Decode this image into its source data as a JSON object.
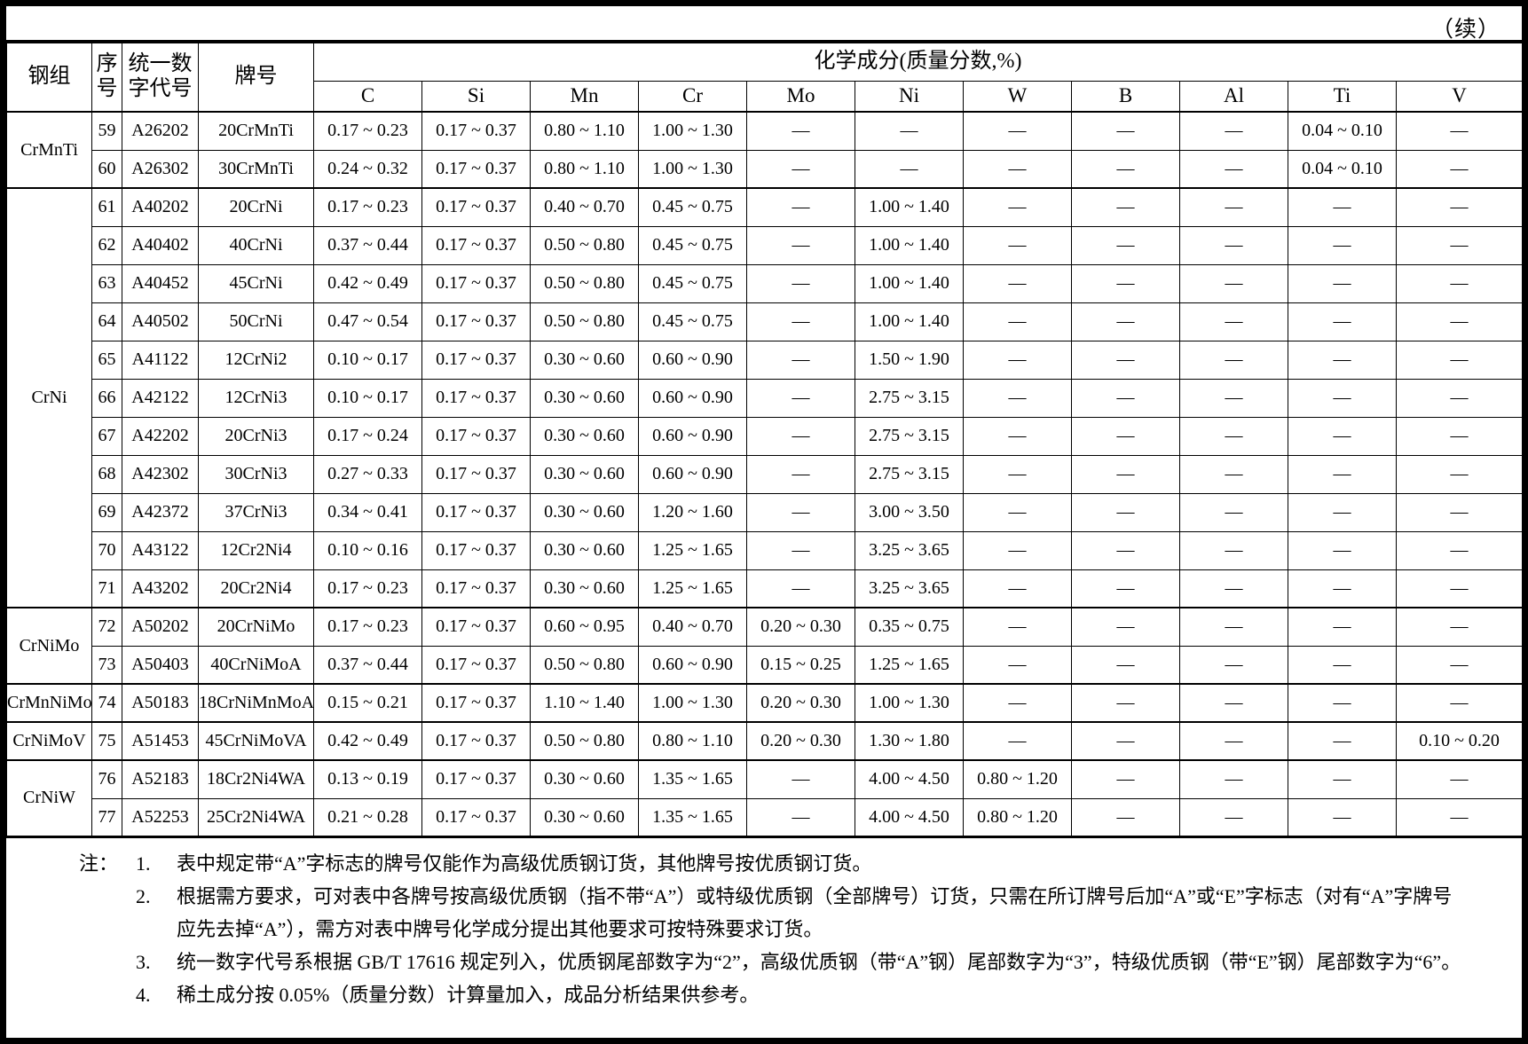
{
  "page": {
    "continued_label": "（续）"
  },
  "table": {
    "headers": {
      "group": "钢组",
      "index": "序号",
      "code": "统一数字代号",
      "grade": "牌号",
      "composition": "化学成分(质量分数,%)",
      "elements": [
        "C",
        "Si",
        "Mn",
        "Cr",
        "Mo",
        "Ni",
        "W",
        "B",
        "Al",
        "Ti",
        "V"
      ]
    },
    "empty_mark": "—",
    "groups": [
      {
        "name": "CrMnTi",
        "rows": [
          {
            "no": "59",
            "code": "A26202",
            "grade": "20CrMnTi",
            "values": [
              "0.17 ~ 0.23",
              "0.17 ~ 0.37",
              "0.80 ~ 1.10",
              "1.00 ~ 1.30",
              "—",
              "—",
              "—",
              "—",
              "—",
              "0.04 ~ 0.10",
              "—"
            ]
          },
          {
            "no": "60",
            "code": "A26302",
            "grade": "30CrMnTi",
            "values": [
              "0.24 ~ 0.32",
              "0.17 ~ 0.37",
              "0.80 ~ 1.10",
              "1.00 ~ 1.30",
              "—",
              "—",
              "—",
              "—",
              "—",
              "0.04 ~ 0.10",
              "—"
            ]
          }
        ]
      },
      {
        "name": "CrNi",
        "rows": [
          {
            "no": "61",
            "code": "A40202",
            "grade": "20CrNi",
            "values": [
              "0.17 ~ 0.23",
              "0.17 ~ 0.37",
              "0.40 ~ 0.70",
              "0.45 ~ 0.75",
              "—",
              "1.00 ~ 1.40",
              "—",
              "—",
              "—",
              "—",
              "—"
            ]
          },
          {
            "no": "62",
            "code": "A40402",
            "grade": "40CrNi",
            "values": [
              "0.37 ~ 0.44",
              "0.17 ~ 0.37",
              "0.50 ~ 0.80",
              "0.45 ~ 0.75",
              "—",
              "1.00 ~ 1.40",
              "—",
              "—",
              "—",
              "—",
              "—"
            ]
          },
          {
            "no": "63",
            "code": "A40452",
            "grade": "45CrNi",
            "values": [
              "0.42 ~ 0.49",
              "0.17 ~ 0.37",
              "0.50 ~ 0.80",
              "0.45 ~ 0.75",
              "—",
              "1.00 ~ 1.40",
              "—",
              "—",
              "—",
              "—",
              "—"
            ]
          },
          {
            "no": "64",
            "code": "A40502",
            "grade": "50CrNi",
            "values": [
              "0.47 ~ 0.54",
              "0.17 ~ 0.37",
              "0.50 ~ 0.80",
              "0.45 ~ 0.75",
              "—",
              "1.00 ~ 1.40",
              "—",
              "—",
              "—",
              "—",
              "—"
            ]
          },
          {
            "no": "65",
            "code": "A41122",
            "grade": "12CrNi2",
            "values": [
              "0.10 ~ 0.17",
              "0.17 ~ 0.37",
              "0.30 ~ 0.60",
              "0.60 ~ 0.90",
              "—",
              "1.50 ~ 1.90",
              "—",
              "—",
              "—",
              "—",
              "—"
            ]
          },
          {
            "no": "66",
            "code": "A42122",
            "grade": "12CrNi3",
            "values": [
              "0.10 ~ 0.17",
              "0.17 ~ 0.37",
              "0.30 ~ 0.60",
              "0.60 ~ 0.90",
              "—",
              "2.75 ~ 3.15",
              "—",
              "—",
              "—",
              "—",
              "—"
            ]
          },
          {
            "no": "67",
            "code": "A42202",
            "grade": "20CrNi3",
            "values": [
              "0.17 ~ 0.24",
              "0.17 ~ 0.37",
              "0.30 ~ 0.60",
              "0.60 ~ 0.90",
              "—",
              "2.75 ~ 3.15",
              "—",
              "—",
              "—",
              "—",
              "—"
            ]
          },
          {
            "no": "68",
            "code": "A42302",
            "grade": "30CrNi3",
            "values": [
              "0.27 ~ 0.33",
              "0.17 ~ 0.37",
              "0.30 ~ 0.60",
              "0.60 ~ 0.90",
              "—",
              "2.75 ~ 3.15",
              "—",
              "—",
              "—",
              "—",
              "—"
            ]
          },
          {
            "no": "69",
            "code": "A42372",
            "grade": "37CrNi3",
            "values": [
              "0.34 ~ 0.41",
              "0.17 ~ 0.37",
              "0.30 ~ 0.60",
              "1.20 ~ 1.60",
              "—",
              "3.00 ~ 3.50",
              "—",
              "—",
              "—",
              "—",
              "—"
            ]
          },
          {
            "no": "70",
            "code": "A43122",
            "grade": "12Cr2Ni4",
            "values": [
              "0.10 ~ 0.16",
              "0.17 ~ 0.37",
              "0.30 ~ 0.60",
              "1.25 ~ 1.65",
              "—",
              "3.25 ~ 3.65",
              "—",
              "—",
              "—",
              "—",
              "—"
            ]
          },
          {
            "no": "71",
            "code": "A43202",
            "grade": "20Cr2Ni4",
            "values": [
              "0.17 ~ 0.23",
              "0.17 ~ 0.37",
              "0.30 ~ 0.60",
              "1.25 ~ 1.65",
              "—",
              "3.25 ~ 3.65",
              "—",
              "—",
              "—",
              "—",
              "—"
            ]
          }
        ]
      },
      {
        "name": "CrNiMo",
        "rows": [
          {
            "no": "72",
            "code": "A50202",
            "grade": "20CrNiMo",
            "values": [
              "0.17 ~ 0.23",
              "0.17 ~ 0.37",
              "0.60 ~ 0.95",
              "0.40 ~ 0.70",
              "0.20 ~ 0.30",
              "0.35 ~ 0.75",
              "—",
              "—",
              "—",
              "—",
              "—"
            ]
          },
          {
            "no": "73",
            "code": "A50403",
            "grade": "40CrNiMoA",
            "values": [
              "0.37 ~ 0.44",
              "0.17 ~ 0.37",
              "0.50 ~ 0.80",
              "0.60 ~ 0.90",
              "0.15 ~ 0.25",
              "1.25 ~ 1.65",
              "—",
              "—",
              "—",
              "—",
              "—"
            ]
          }
        ]
      },
      {
        "name": "CrMnNiMo",
        "rows": [
          {
            "no": "74",
            "code": "A50183",
            "grade": "18CrNiMnMoA",
            "values": [
              "0.15 ~ 0.21",
              "0.17 ~ 0.37",
              "1.10 ~ 1.40",
              "1.00 ~ 1.30",
              "0.20 ~ 0.30",
              "1.00 ~ 1.30",
              "—",
              "—",
              "—",
              "—",
              "—"
            ]
          }
        ]
      },
      {
        "name": "CrNiMoV",
        "rows": [
          {
            "no": "75",
            "code": "A51453",
            "grade": "45CrNiMoVA",
            "values": [
              "0.42 ~ 0.49",
              "0.17 ~ 0.37",
              "0.50 ~ 0.80",
              "0.80 ~ 1.10",
              "0.20 ~ 0.30",
              "1.30 ~ 1.80",
              "—",
              "—",
              "—",
              "—",
              "0.10 ~ 0.20"
            ]
          }
        ]
      },
      {
        "name": "CrNiW",
        "rows": [
          {
            "no": "76",
            "code": "A52183",
            "grade": "18Cr2Ni4WA",
            "values": [
              "0.13 ~ 0.19",
              "0.17 ~ 0.37",
              "0.30 ~ 0.60",
              "1.35 ~ 1.65",
              "—",
              "4.00 ~ 4.50",
              "0.80 ~ 1.20",
              "—",
              "—",
              "—",
              "—"
            ]
          },
          {
            "no": "77",
            "code": "A52253",
            "grade": "25Cr2Ni4WA",
            "values": [
              "0.21 ~ 0.28",
              "0.17 ~ 0.37",
              "0.30 ~ 0.60",
              "1.35 ~ 1.65",
              "—",
              "4.00 ~ 4.50",
              "0.80 ~ 1.20",
              "—",
              "—",
              "—",
              "—"
            ]
          }
        ]
      }
    ]
  },
  "notes": {
    "label": "注：",
    "items": [
      {
        "num": "1.",
        "text": "表中规定带“A”字标志的牌号仅能作为高级优质钢订货，其他牌号按优质钢订货。"
      },
      {
        "num": "2.",
        "text": "根据需方要求，可对表中各牌号按高级优质钢（指不带“A”）或特级优质钢（全部牌号）订货，只需在所订牌号后加“A”或“E”字标志（对有“A”字牌号",
        "text2": "应先去掉“A”），需方对表中牌号化学成分提出其他要求可按特殊要求订货。"
      },
      {
        "num": "3.",
        "text": "统一数字代号系根据 GB/T 17616 规定列入，优质钢尾部数字为“2”，高级优质钢（带“A”钢）尾部数字为“3”，特级优质钢（带“E”钢）尾部数字为“6”。"
      },
      {
        "num": "4.",
        "text": "稀土成分按 0.05%（质量分数）计算量加入，成品分析结果供参考。"
      }
    ]
  }
}
